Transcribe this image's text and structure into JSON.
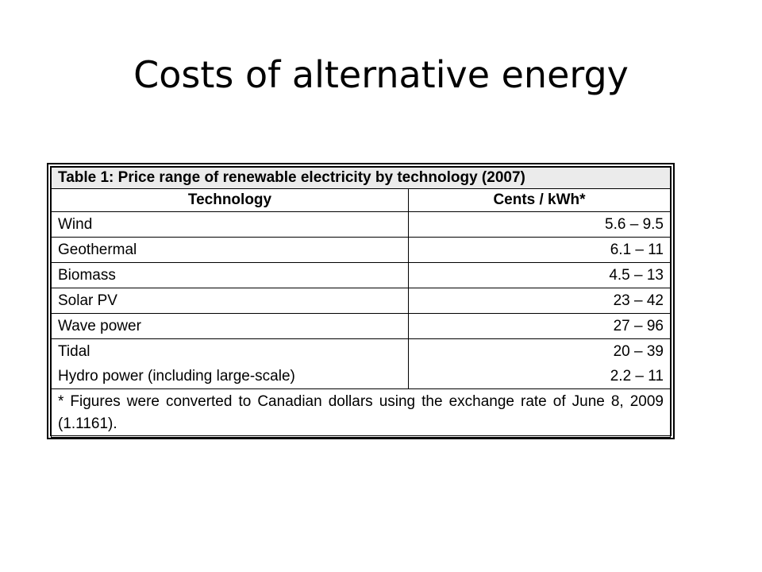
{
  "slide": {
    "title": "Costs of alternative energy"
  },
  "table": {
    "caption": "Table 1: Price range of renewable electricity by technology (2007)",
    "headers": {
      "technology": "Technology",
      "cost": "Cents / kWh*"
    },
    "rows": [
      {
        "technology": "Wind",
        "cost": "5.6 – 9.5"
      },
      {
        "technology": "Geothermal",
        "cost": "6.1 – 11"
      },
      {
        "technology": "Biomass",
        "cost": "4.5 – 13"
      },
      {
        "technology": "Solar PV",
        "cost": "23 – 42"
      },
      {
        "technology": "Wave power",
        "cost": "27 – 96"
      },
      {
        "technology": "Tidal",
        "cost": "20 – 39"
      },
      {
        "technology": "Hydro power (including large-scale)",
        "cost": "2.2 – 11"
      }
    ],
    "footnote": "* Figures were converted to Canadian dollars using the exchange rate of June 8, 2009 (1.1161)."
  }
}
